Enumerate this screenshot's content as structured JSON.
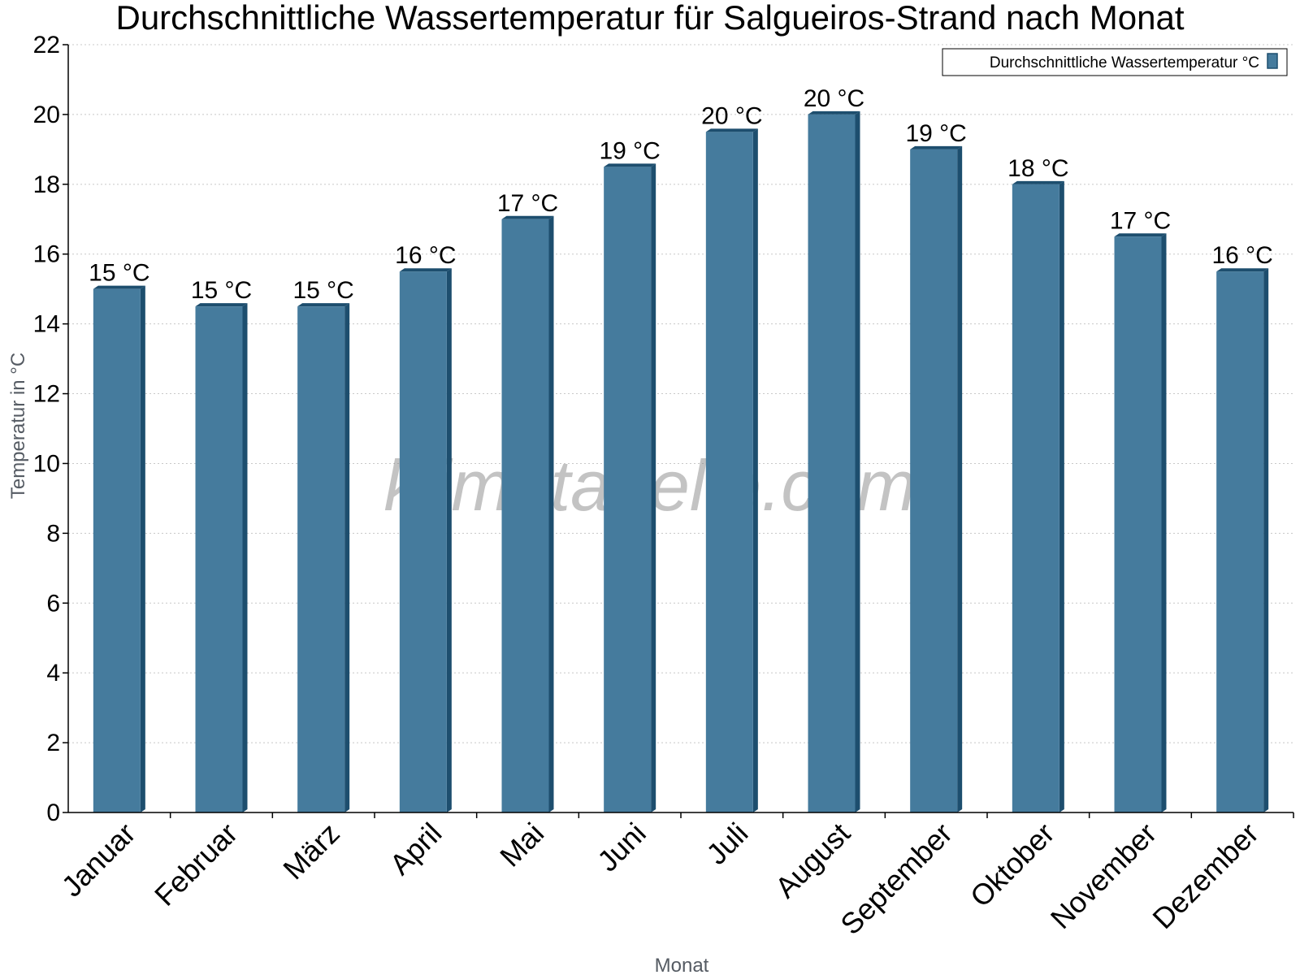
{
  "chart_data": {
    "type": "bar",
    "title": "Durchschnittliche Wassertemperatur für Salgueiros-Strand nach Monat",
    "xlabel": "Monat",
    "ylabel": "Temperatur in °C",
    "ylim": [
      0,
      22
    ],
    "yticks": [
      "0",
      "2",
      "4",
      "6",
      "8",
      "10",
      "12",
      "14",
      "16",
      "18",
      "20",
      "22"
    ],
    "grid": true,
    "legend_position": "top-right",
    "categories": [
      "Januar",
      "Februar",
      "März",
      "April",
      "Mai",
      "Juni",
      "Juli",
      "August",
      "September",
      "Oktober",
      "November",
      "Dezember"
    ],
    "series": [
      {
        "name": "Durchschnittliche Wassertemperatur °C",
        "values": [
          15.0,
          14.5,
          14.5,
          15.5,
          17.0,
          18.5,
          19.5,
          20.0,
          19.0,
          18.0,
          16.5,
          15.5
        ],
        "labels": [
          "15 °C",
          "15 °C",
          "15 °C",
          "16 °C",
          "17 °C",
          "19 °C",
          "20 °C",
          "20 °C",
          "19 °C",
          "18 °C",
          "17 °C",
          "16 °C"
        ],
        "color": "#457b9d",
        "edge_color": "#1d4e6e"
      }
    ]
  },
  "watermark": "klimatabelle.com"
}
